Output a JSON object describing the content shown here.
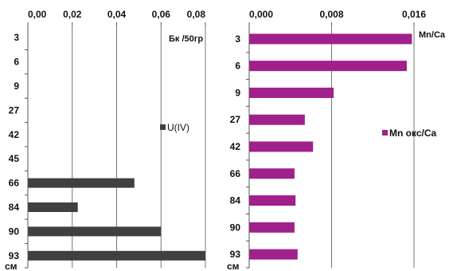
{
  "chart_data": [
    {
      "type": "bar",
      "orientation": "horizontal",
      "categories": [
        "3",
        "6",
        "9",
        "27",
        "42",
        "45",
        "66",
        "84",
        "90",
        "93"
      ],
      "depth_unit": "см",
      "series": [
        {
          "name": "U(IV)",
          "values": [
            0,
            0,
            0,
            0,
            0,
            0,
            0.048,
            0.0225,
            0.06,
            0.08
          ]
        }
      ],
      "xlim": [
        0,
        0.08
      ],
      "x_ticks": [
        "0,00",
        "0,02",
        "0,04",
        "0,06",
        "0,08"
      ],
      "x_tick_values": [
        0,
        0.02,
        0.04,
        0.06,
        0.08
      ],
      "x_axis_position": "top",
      "unit_label": "Бк /50гр",
      "legend_position": "right",
      "grid": "vertical",
      "bar_color": "#404040"
    },
    {
      "type": "bar",
      "orientation": "horizontal",
      "categories": [
        "3",
        "6",
        "9",
        "27",
        "42",
        "66",
        "84",
        "90",
        "93"
      ],
      "depth_unit": "см",
      "series": [
        {
          "name": "Mn окс/Ca",
          "values": [
            0.0158,
            0.0153,
            0.0082,
            0.0054,
            0.0062,
            0.0044,
            0.0045,
            0.0044,
            0.0047
          ]
        }
      ],
      "xlim": [
        0,
        0.016
      ],
      "x_ticks": [
        "0,000",
        "0,008",
        "0,016"
      ],
      "x_tick_values": [
        0,
        0.008,
        0.016
      ],
      "x_axis_position": "top",
      "unit_label": "Mn/Ca",
      "legend_position": "right",
      "grid": "vertical",
      "bar_color": "#a0208c"
    }
  ]
}
